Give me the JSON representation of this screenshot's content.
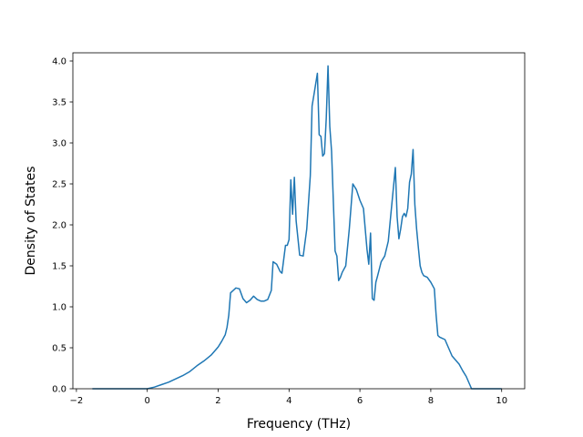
{
  "chart_data": {
    "type": "line",
    "title": "",
    "xlabel": "Frequency (THz)",
    "ylabel": "Density of States",
    "xlim": [
      -2.1,
      10.65
    ],
    "ylim": [
      0,
      4.1
    ],
    "xticks": [
      -2,
      0,
      2,
      4,
      6,
      8,
      10
    ],
    "yticks": [
      0.0,
      0.5,
      1.0,
      1.5,
      2.0,
      2.5,
      3.0,
      3.5,
      4.0
    ],
    "xtick_labels": [
      "−2",
      "0",
      "2",
      "4",
      "6",
      "8",
      "10"
    ],
    "ytick_labels": [
      "0.0",
      "0.5",
      "1.0",
      "1.5",
      "2.0",
      "2.5",
      "3.0",
      "3.5",
      "4.0"
    ],
    "grid": false,
    "legend": null,
    "series": [
      {
        "color": "#1f77b4",
        "x": [
          -1.55,
          -1.0,
          -0.5,
          0.0,
          0.2,
          0.4,
          0.6,
          0.8,
          1.0,
          1.2,
          1.4,
          1.6,
          1.8,
          2.0,
          2.1,
          2.2,
          2.25,
          2.3,
          2.35,
          2.5,
          2.6,
          2.7,
          2.8,
          2.9,
          3.0,
          3.1,
          3.2,
          3.3,
          3.4,
          3.5,
          3.55,
          3.65,
          3.75,
          3.8,
          3.9,
          3.95,
          4.0,
          4.05,
          4.1,
          4.15,
          4.2,
          4.3,
          4.4,
          4.5,
          4.6,
          4.65,
          4.7,
          4.8,
          4.85,
          4.9,
          4.95,
          5.0,
          5.05,
          5.1,
          5.15,
          5.2,
          5.3,
          5.35,
          5.4,
          5.45,
          5.5,
          5.6,
          5.7,
          5.8,
          5.9,
          6.0,
          6.05,
          6.1,
          6.15,
          6.2,
          6.25,
          6.3,
          6.35,
          6.4,
          6.45,
          6.5,
          6.6,
          6.7,
          6.8,
          6.9,
          7.0,
          7.05,
          7.1,
          7.15,
          7.2,
          7.25,
          7.3,
          7.35,
          7.4,
          7.45,
          7.5,
          7.55,
          7.6,
          7.65,
          7.7,
          7.75,
          7.8,
          7.9,
          8.0,
          8.1,
          8.15,
          8.2,
          8.25,
          8.3,
          8.4,
          8.5,
          8.55,
          8.6,
          8.7,
          8.8,
          8.9,
          9.0,
          9.1,
          9.15,
          9.5,
          10.0
        ],
        "y": [
          0.0,
          0.0,
          0.0,
          0.0,
          0.02,
          0.05,
          0.08,
          0.12,
          0.16,
          0.21,
          0.28,
          0.34,
          0.41,
          0.51,
          0.58,
          0.66,
          0.75,
          0.9,
          1.17,
          1.23,
          1.22,
          1.1,
          1.05,
          1.08,
          1.13,
          1.09,
          1.07,
          1.07,
          1.09,
          1.2,
          1.55,
          1.52,
          1.43,
          1.41,
          1.75,
          1.75,
          1.82,
          2.55,
          2.13,
          2.58,
          2.05,
          1.63,
          1.62,
          1.95,
          2.6,
          3.45,
          3.58,
          3.85,
          3.1,
          3.08,
          2.84,
          2.87,
          3.3,
          3.94,
          3.2,
          2.9,
          1.68,
          1.62,
          1.32,
          1.36,
          1.42,
          1.5,
          1.95,
          2.5,
          2.43,
          2.3,
          2.25,
          2.2,
          1.95,
          1.7,
          1.52,
          1.9,
          1.1,
          1.08,
          1.3,
          1.38,
          1.55,
          1.62,
          1.8,
          2.25,
          2.7,
          2.1,
          1.83,
          1.95,
          2.1,
          2.14,
          2.1,
          2.2,
          2.52,
          2.62,
          2.92,
          2.25,
          1.95,
          1.72,
          1.5,
          1.42,
          1.38,
          1.36,
          1.3,
          1.22,
          0.9,
          0.65,
          0.63,
          0.62,
          0.6,
          0.5,
          0.45,
          0.4,
          0.35,
          0.3,
          0.22,
          0.15,
          0.05,
          0.0,
          0.0,
          0.0
        ]
      }
    ]
  }
}
